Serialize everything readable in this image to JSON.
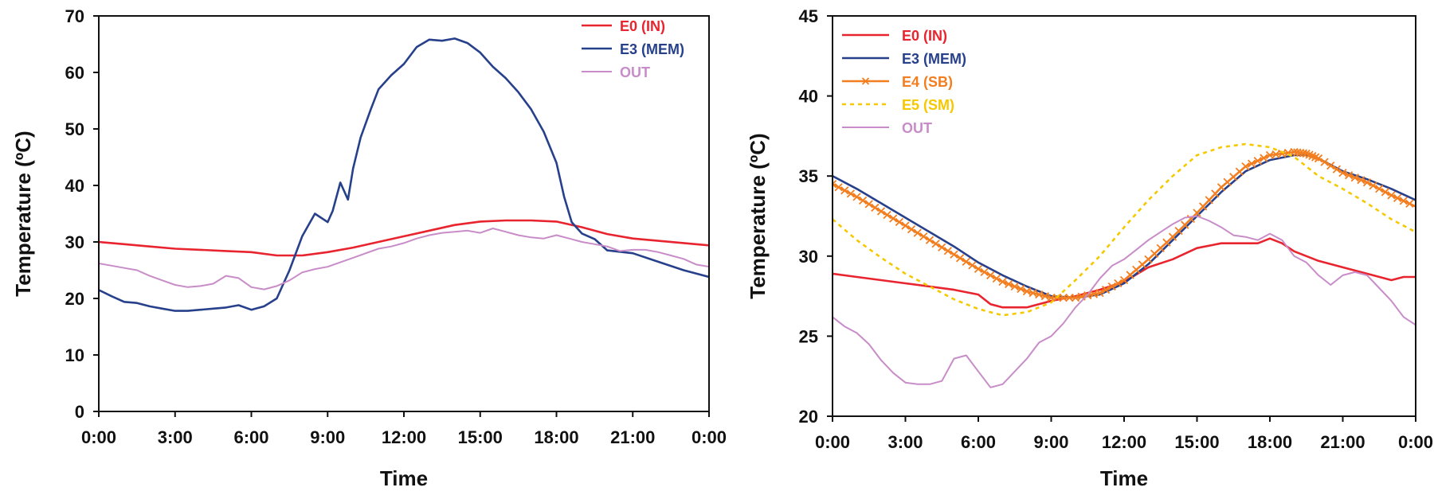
{
  "chart_data": [
    {
      "type": "line",
      "xlabel": "Time",
      "ylabel": "Temperature (ºC)",
      "xlim": [
        0,
        24
      ],
      "ylim": [
        0,
        70
      ],
      "x_ticks": [
        0,
        3,
        6,
        9,
        12,
        15,
        18,
        21,
        24
      ],
      "x_tick_labels": [
        "0:00",
        "3:00",
        "6:00",
        "9:00",
        "12:00",
        "15:00",
        "18:00",
        "21:00",
        "0:00"
      ],
      "y_ticks": [
        0,
        10,
        20,
        30,
        40,
        50,
        60,
        70
      ],
      "y_tick_labels": [
        "0",
        "10",
        "20",
        "30",
        "40",
        "50",
        "60",
        "70"
      ],
      "grid": false,
      "legend_position": "top-right",
      "series": [
        {
          "name": "E0 (IN)",
          "color": "#e8242f",
          "width": 2.6,
          "x": [
            0,
            1,
            2,
            3,
            4,
            5,
            6,
            7,
            8,
            9,
            10,
            11,
            12,
            13,
            14,
            15,
            16,
            17,
            18,
            19,
            20,
            21,
            22,
            23,
            24
          ],
          "y": [
            30,
            29.6,
            29.2,
            28.8,
            28.6,
            28.4,
            28.2,
            27.6,
            27.6,
            28.2,
            29,
            30,
            31,
            32,
            33,
            33.6,
            33.8,
            33.8,
            33.6,
            32.6,
            31.4,
            30.6,
            30.2,
            29.8,
            29.4
          ]
        },
        {
          "name": "E3 (MEM)",
          "color": "#27408b",
          "width": 2.6,
          "x": [
            0,
            0.5,
            1,
            1.5,
            2,
            2.5,
            3,
            3.5,
            4,
            4.5,
            5,
            5.5,
            6,
            6.5,
            7,
            7.5,
            8,
            8.5,
            9,
            9.2,
            9.5,
            9.8,
            10,
            10.3,
            10.7,
            11,
            11.5,
            12,
            12.5,
            13,
            13.5,
            14,
            14.5,
            15,
            15.5,
            16,
            16.5,
            17,
            17.5,
            18,
            18.3,
            18.6,
            19,
            19.5,
            20,
            21,
            22,
            23,
            24
          ],
          "y": [
            21.5,
            20.4,
            19.4,
            19.2,
            18.6,
            18.2,
            17.8,
            17.8,
            18.0,
            18.2,
            18.4,
            18.8,
            18.0,
            18.6,
            20.0,
            25.0,
            31.0,
            35.0,
            33.5,
            35.5,
            40.5,
            37.5,
            43.0,
            48.5,
            53.5,
            57.0,
            59.5,
            61.5,
            64.5,
            65.8,
            65.6,
            66.0,
            65.2,
            63.5,
            61.0,
            59.0,
            56.5,
            53.5,
            49.5,
            44.0,
            38.0,
            33.5,
            31.5,
            30.5,
            28.5,
            28.0,
            26.5,
            25.0,
            23.8
          ]
        },
        {
          "name": "OUT",
          "color": "#c88dc8",
          "width": 2,
          "x": [
            0,
            0.5,
            1,
            1.5,
            2,
            2.5,
            3,
            3.5,
            4,
            4.5,
            5,
            5.5,
            6,
            6.5,
            7,
            7.5,
            8,
            8.5,
            9,
            9.5,
            10,
            10.5,
            11,
            11.5,
            12,
            12.5,
            13,
            13.5,
            14,
            14.5,
            15,
            15.5,
            16,
            16.5,
            17,
            17.5,
            18,
            18.5,
            19,
            19.5,
            20,
            20.5,
            21,
            21.5,
            22,
            22.5,
            23,
            23.5,
            24
          ],
          "y": [
            26.2,
            25.8,
            25.4,
            25.0,
            24.0,
            23.2,
            22.4,
            22.0,
            22.2,
            22.6,
            24.0,
            23.6,
            22.0,
            21.6,
            22.2,
            23.2,
            24.6,
            25.2,
            25.6,
            26.4,
            27.2,
            28.0,
            28.8,
            29.2,
            29.8,
            30.6,
            31.2,
            31.6,
            31.8,
            32.0,
            31.6,
            32.4,
            31.8,
            31.2,
            30.8,
            30.6,
            31.2,
            30.6,
            30.0,
            29.6,
            29.2,
            28.4,
            28.6,
            28.6,
            28.2,
            27.6,
            27.0,
            26.0,
            25.6
          ]
        }
      ]
    },
    {
      "type": "line",
      "xlabel": "Time",
      "ylabel": "Temperature (ºC)",
      "xlim": [
        0,
        24
      ],
      "ylim": [
        20,
        45
      ],
      "x_ticks": [
        0,
        3,
        6,
        9,
        12,
        15,
        18,
        21,
        24
      ],
      "x_tick_labels": [
        "0:00",
        "3:00",
        "6:00",
        "9:00",
        "12:00",
        "15:00",
        "18:00",
        "21:00",
        "0:00"
      ],
      "y_ticks": [
        20,
        25,
        30,
        35,
        40,
        45
      ],
      "y_tick_labels": [
        "20",
        "25",
        "30",
        "35",
        "40",
        "45"
      ],
      "grid": false,
      "legend_position": "top-left",
      "series": [
        {
          "name": "E0 (IN)",
          "color": "#e8242f",
          "width": 2.6,
          "x": [
            0,
            1,
            2,
            3,
            4,
            5,
            6,
            6.5,
            7,
            8,
            9,
            10,
            11,
            12,
            13,
            14,
            15,
            16,
            17,
            17.5,
            18,
            18.5,
            19,
            20,
            21,
            22,
            23,
            23.5,
            24
          ],
          "y": [
            28.9,
            28.7,
            28.5,
            28.3,
            28.1,
            27.9,
            27.6,
            27.0,
            26.8,
            26.8,
            27.2,
            27.5,
            27.9,
            28.4,
            29.3,
            29.8,
            30.5,
            30.8,
            30.8,
            30.8,
            31.1,
            30.8,
            30.3,
            29.7,
            29.3,
            28.9,
            28.5,
            28.7,
            28.7
          ]
        },
        {
          "name": "E3 (MEM)",
          "color": "#27408b",
          "width": 2.6,
          "x": [
            0,
            1,
            2,
            3,
            4,
            5,
            6,
            7,
            8,
            9,
            10,
            11,
            12,
            13,
            14,
            15,
            16,
            17,
            18,
            19,
            19.5,
            20,
            21,
            22,
            23,
            24
          ],
          "y": [
            35.0,
            34.2,
            33.3,
            32.4,
            31.5,
            30.6,
            29.6,
            28.8,
            28.1,
            27.5,
            27.4,
            27.6,
            28.3,
            29.5,
            31.0,
            32.5,
            34.0,
            35.3,
            36.0,
            36.3,
            36.3,
            36.1,
            35.3,
            34.8,
            34.2,
            33.5
          ]
        },
        {
          "name": "E4 (SB)",
          "color": "#f27e20",
          "width": 2.6,
          "markers": true,
          "x": [
            0,
            1,
            2,
            3,
            4,
            5,
            6,
            7,
            8,
            9,
            10,
            11,
            12,
            13,
            14,
            15,
            16,
            17,
            18,
            19,
            19.5,
            20,
            21,
            22,
            23,
            24
          ],
          "y": [
            34.5,
            33.7,
            32.8,
            31.9,
            31.0,
            30.1,
            29.2,
            28.4,
            27.8,
            27.4,
            27.4,
            27.7,
            28.5,
            29.8,
            31.2,
            32.7,
            34.3,
            35.6,
            36.3,
            36.5,
            36.4,
            36.1,
            35.2,
            34.6,
            33.8,
            33.1
          ]
        },
        {
          "name": "E5 (SM)",
          "color": "#f5c800",
          "width": 2.6,
          "dashed": true,
          "x": [
            0,
            1,
            2,
            3,
            4,
            5,
            6,
            7,
            8,
            9,
            10,
            11,
            12,
            13,
            14,
            15,
            16,
            17,
            18,
            19,
            20,
            21,
            22,
            23,
            24
          ],
          "y": [
            32.3,
            31.0,
            29.9,
            28.9,
            28.1,
            27.3,
            26.7,
            26.3,
            26.5,
            27.1,
            28.5,
            30.0,
            31.8,
            33.5,
            35.0,
            36.3,
            36.8,
            37.0,
            36.8,
            36.2,
            35.0,
            34.2,
            33.3,
            32.3,
            31.5
          ]
        },
        {
          "name": "OUT",
          "color": "#c88dc8",
          "width": 2,
          "x": [
            0,
            0.5,
            1,
            1.5,
            2,
            2.5,
            3,
            3.5,
            4,
            4.5,
            5,
            5.5,
            6,
            6.5,
            7,
            7.5,
            8,
            8.5,
            9,
            9.5,
            10,
            10.5,
            11,
            11.5,
            12,
            12.5,
            13,
            13.5,
            14,
            14.5,
            15,
            15.5,
            16,
            16.5,
            17,
            17.5,
            18,
            18.5,
            19,
            19.5,
            20,
            20.5,
            21,
            21.5,
            22,
            22.5,
            23,
            23.5,
            24
          ],
          "y": [
            26.2,
            25.6,
            25.2,
            24.5,
            23.5,
            22.7,
            22.1,
            22.0,
            22.0,
            22.2,
            23.6,
            23.8,
            22.8,
            21.8,
            22.0,
            22.8,
            23.6,
            24.6,
            25.0,
            25.8,
            26.8,
            27.6,
            28.6,
            29.4,
            29.8,
            30.4,
            31.0,
            31.5,
            32.0,
            32.4,
            32.5,
            32.2,
            31.8,
            31.3,
            31.2,
            31.0,
            31.4,
            31.0,
            30.0,
            29.6,
            28.8,
            28.2,
            28.8,
            29.0,
            28.8,
            28.0,
            27.2,
            26.2,
            25.7
          ]
        }
      ]
    }
  ]
}
